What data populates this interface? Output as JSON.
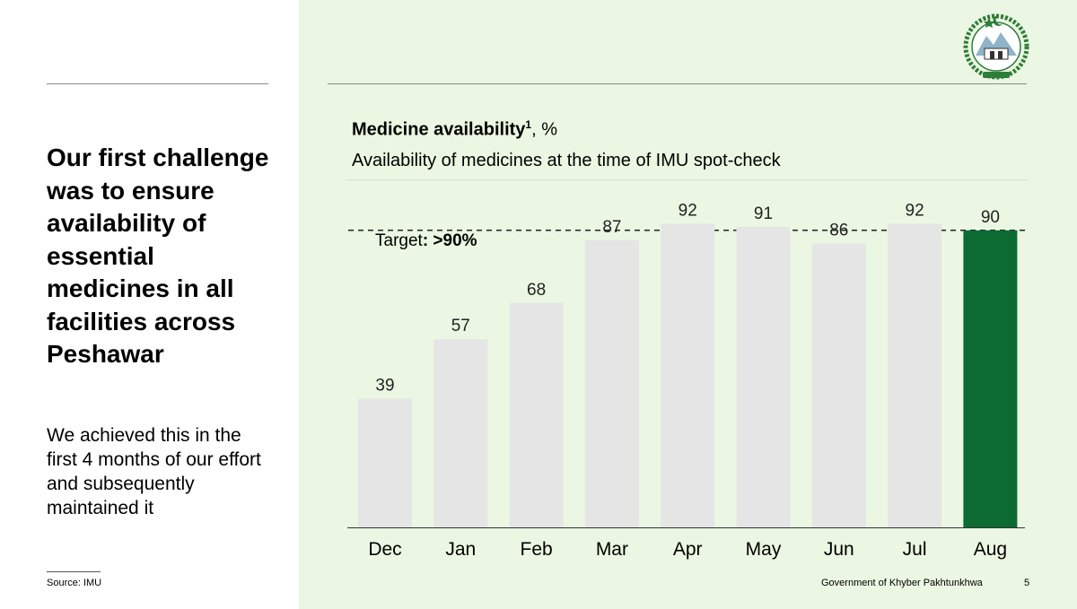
{
  "slide": {
    "headline": "Our first challenge was to ensure availability of essential medicines in all facilities across Peshawar",
    "subtext": "We achieved this in the first 4 months of our effort and subsequently maintained it",
    "source": "Source: IMU",
    "footer": "Government of Khyber Pakhtunkhwa",
    "page_number": "5"
  },
  "chart_data": {
    "type": "bar",
    "title": "Medicine availability",
    "title_superscript": "1",
    "title_unit": ", %",
    "subtitle": "Availability of medicines at the time of IMU spot-check",
    "target_label_prefix": "Target",
    "target_label_value": ": >90%",
    "target": 90,
    "categories": [
      "Dec",
      "Jan",
      "Feb",
      "Mar",
      "Apr",
      "May",
      "Jun",
      "Jul",
      "Aug"
    ],
    "values": [
      39,
      57,
      68,
      87,
      92,
      91,
      86,
      92,
      90
    ],
    "highlight_index": 8,
    "ylim": [
      0,
      100
    ],
    "grid": false,
    "colors": {
      "bar": "#e5e5e5",
      "highlight": "#0b6b33",
      "target_line": "#222222",
      "panel": "#ebf7e2"
    }
  }
}
